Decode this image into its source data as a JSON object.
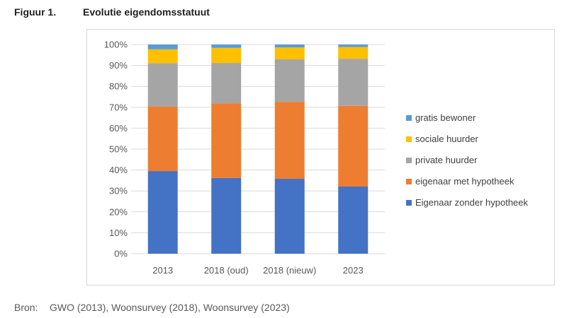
{
  "figure": {
    "number": "Figuur 1.",
    "title": "Evolutie eigendomsstatuut"
  },
  "source": {
    "label": "Bron:",
    "text": "GWO (2013), Woonsurvey (2018), Woonsurvey (2023)"
  },
  "chart_data": {
    "type": "bar",
    "stacked": true,
    "categories": [
      "2013",
      "2018 (oud)",
      "2018 (nieuw)",
      "2023"
    ],
    "ylim": [
      0,
      100
    ],
    "y_ticks": [
      "0%",
      "10%",
      "20%",
      "30%",
      "40%",
      "50%",
      "60%",
      "70%",
      "80%",
      "90%",
      "100%"
    ],
    "grid": true,
    "legend_position": "right",
    "series": [
      {
        "name": "Eigenaar zonder hypotheek",
        "color": "#4472C4",
        "values": [
          39.5,
          36.2,
          35.8,
          32.1
        ]
      },
      {
        "name": "eigenaar met hypotheek",
        "color": "#ED7D31",
        "values": [
          30.9,
          35.7,
          36.8,
          38.6
        ]
      },
      {
        "name": "private huurder",
        "color": "#A5A5A5",
        "values": [
          20.7,
          19.3,
          20.3,
          22.5
        ]
      },
      {
        "name": "sociale huurder",
        "color": "#FFC000",
        "values": [
          6.6,
          7.2,
          5.7,
          5.6
        ]
      },
      {
        "name": "gratis bewoner",
        "color": "#5B9BD5",
        "values": [
          2.3,
          1.6,
          1.4,
          1.2
        ]
      }
    ]
  }
}
